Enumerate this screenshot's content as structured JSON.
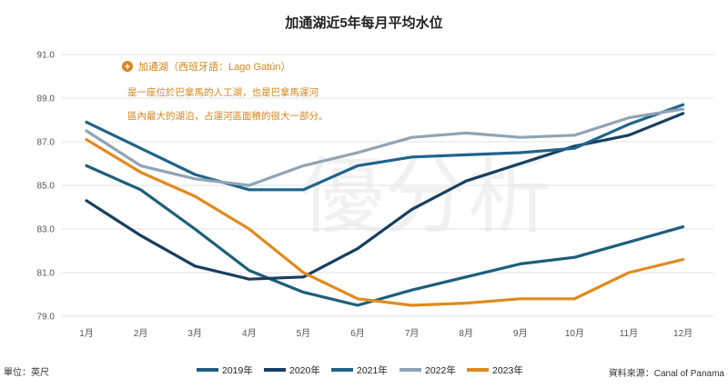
{
  "chart_data": {
    "type": "line",
    "title": "加通湖近5年每月平均水位",
    "categories": [
      "1月",
      "2月",
      "3月",
      "4月",
      "5月",
      "6月",
      "7月",
      "8月",
      "9月",
      "10月",
      "11月",
      "12月"
    ],
    "ylim": [
      79,
      91
    ],
    "yticks": [
      "79.0",
      "81.0",
      "83.0",
      "85.0",
      "87.0",
      "89.0",
      "91.0"
    ],
    "grid": "horizontal",
    "legend_position": "bottom",
    "series": [
      {
        "name": "2019年",
        "color": "#1d5f7a",
        "values": [
          85.9,
          84.8,
          83.0,
          81.1,
          80.1,
          79.5,
          80.2,
          80.8,
          81.4,
          81.7,
          82.4,
          83.1
        ]
      },
      {
        "name": "2020年",
        "color": "#173f5f",
        "values": [
          84.3,
          82.7,
          81.3,
          80.7,
          80.8,
          82.1,
          83.9,
          85.2,
          86.0,
          86.8,
          87.3,
          88.3
        ]
      },
      {
        "name": "2021年",
        "color": "#20648a",
        "values": [
          87.9,
          86.7,
          85.5,
          84.8,
          84.8,
          85.9,
          86.3,
          86.4,
          86.5,
          86.7,
          87.8,
          88.7
        ]
      },
      {
        "name": "2022年",
        "color": "#8fa4b5",
        "values": [
          87.5,
          85.9,
          85.3,
          85.0,
          85.9,
          86.5,
          87.2,
          87.4,
          87.2,
          87.3,
          88.1,
          88.5
        ]
      },
      {
        "name": "2023年",
        "color": "#e08a1e",
        "values": [
          87.1,
          85.6,
          84.5,
          83.0,
          81.0,
          79.8,
          79.5,
          79.6,
          79.8,
          79.8,
          81.0,
          81.6
        ]
      }
    ],
    "annotation": {
      "title": "加通湖（西班牙語：Lago Gatún）",
      "lines": [
        "是一座位於巴拿馬的人工湖，也是巴拿馬運河",
        "區內最大的湖泊，占運河區面積的很大一部分。"
      ]
    },
    "unit_label": "單位：英尺",
    "source_label": "資料來源：Canal of Panama",
    "watermark": "優分析"
  }
}
